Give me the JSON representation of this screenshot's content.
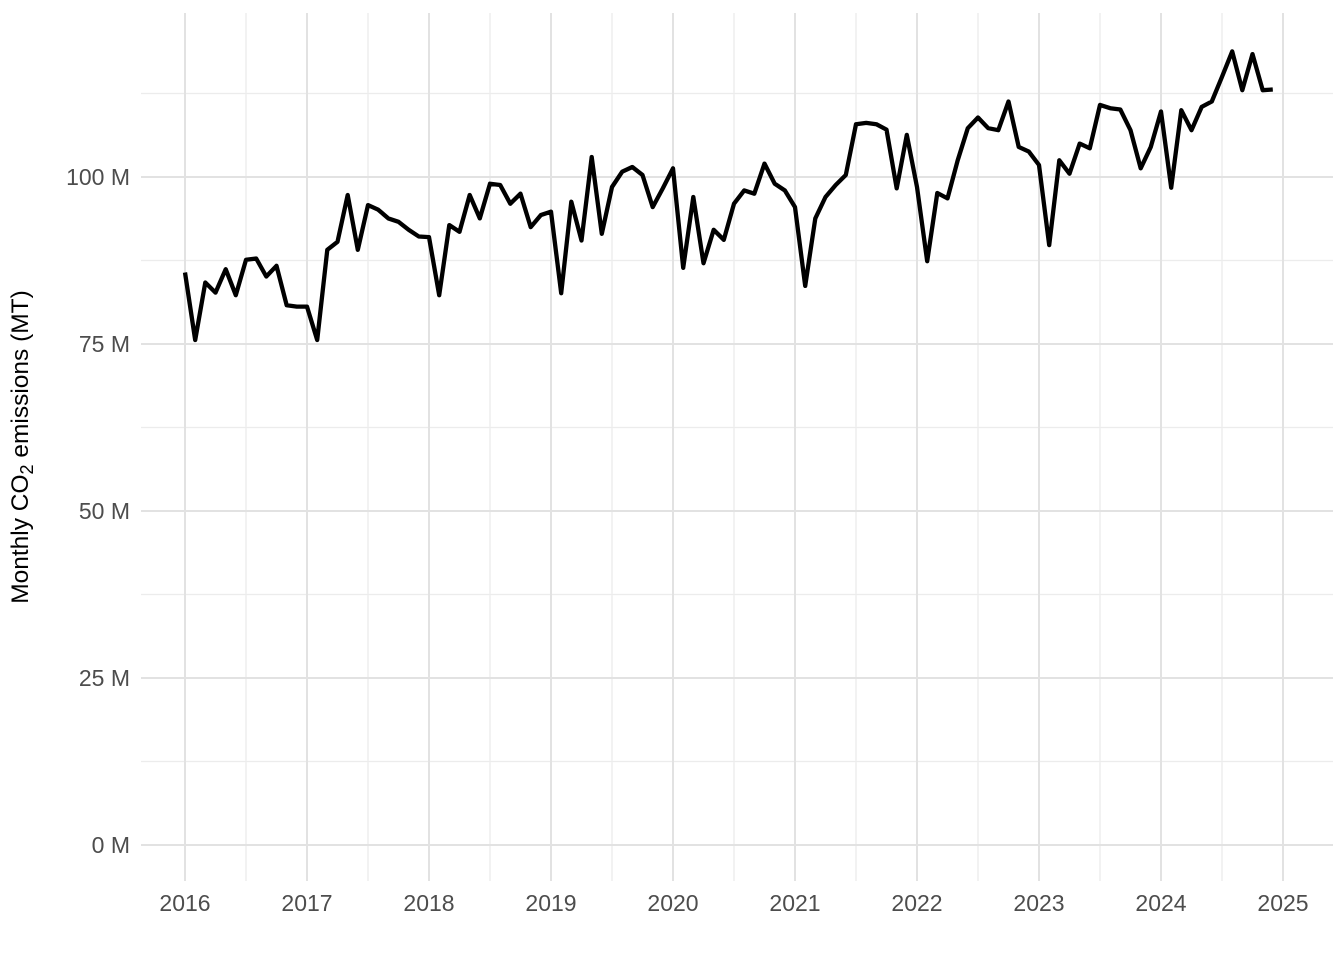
{
  "chart_data": {
    "type": "line",
    "title": "",
    "xlabel": "",
    "ylabel": "Monthly CO2 emissions (MT)",
    "ylabel_parts": {
      "prefix": "Monthly CO",
      "subscript": "2",
      "suffix": " emissions (MT)"
    },
    "legend": "none",
    "grid": "on",
    "x_range_years": [
      2015.64,
      2025.41
    ],
    "y_range": [
      -5,
      124.5
    ],
    "x_axis": {
      "tick_labels": [
        "2016",
        "2017",
        "2018",
        "2019",
        "2020",
        "2021",
        "2022",
        "2023",
        "2024",
        "2025"
      ],
      "tick_values": [
        2016,
        2017,
        2018,
        2019,
        2020,
        2021,
        2022,
        2023,
        2024,
        2025
      ],
      "minor_tick_values": [
        2016.5,
        2017.5,
        2018.5,
        2019.5,
        2020.5,
        2021.5,
        2022.5,
        2023.5,
        2024.5
      ]
    },
    "y_axis": {
      "tick_labels": [
        "0 M",
        "25 M",
        "50 M",
        "75 M",
        "100 M"
      ],
      "tick_values": [
        0,
        25,
        50,
        75,
        100
      ],
      "minor_tick_values": [
        12.5,
        37.5,
        62.5,
        87.5,
        112.5
      ]
    },
    "series": [
      {
        "name": "monthly-co2-emissions",
        "unit": "million tonnes",
        "x": [
          "2016-01",
          "2016-02",
          "2016-03",
          "2016-04",
          "2016-05",
          "2016-06",
          "2016-07",
          "2016-08",
          "2016-09",
          "2016-10",
          "2016-11",
          "2016-12",
          "2017-01",
          "2017-02",
          "2017-03",
          "2017-04",
          "2017-05",
          "2017-06",
          "2017-07",
          "2017-08",
          "2017-09",
          "2017-10",
          "2017-11",
          "2017-12",
          "2018-01",
          "2018-02",
          "2018-03",
          "2018-04",
          "2018-05",
          "2018-06",
          "2018-07",
          "2018-08",
          "2018-09",
          "2018-10",
          "2018-11",
          "2018-12",
          "2019-01",
          "2019-02",
          "2019-03",
          "2019-04",
          "2019-05",
          "2019-06",
          "2019-07",
          "2019-08",
          "2019-09",
          "2019-10",
          "2019-11",
          "2019-12",
          "2020-01",
          "2020-02",
          "2020-03",
          "2020-04",
          "2020-05",
          "2020-06",
          "2020-07",
          "2020-08",
          "2020-09",
          "2020-10",
          "2020-11",
          "2020-12",
          "2021-01",
          "2021-02",
          "2021-03",
          "2021-04",
          "2021-05",
          "2021-06",
          "2021-07",
          "2021-08",
          "2021-09",
          "2021-10",
          "2021-11",
          "2021-12",
          "2022-01",
          "2022-02",
          "2022-03",
          "2022-04",
          "2022-05",
          "2022-06",
          "2022-07",
          "2022-08",
          "2022-09",
          "2022-10",
          "2022-11",
          "2022-12",
          "2023-01",
          "2023-02",
          "2023-03",
          "2023-04",
          "2023-05",
          "2023-06",
          "2023-07",
          "2023-08",
          "2023-09",
          "2023-10",
          "2023-11",
          "2023-12",
          "2024-01",
          "2024-02",
          "2024-03",
          "2024-04",
          "2024-05",
          "2024-06",
          "2024-07",
          "2024-08",
          "2024-09",
          "2024-10",
          "2024-11",
          "2024-12"
        ],
        "values": [
          85.7,
          75.6,
          84.2,
          82.7,
          86.2,
          82.3,
          87.6,
          87.8,
          85.1,
          86.7,
          80.8,
          80.6,
          80.6,
          75.6,
          89.1,
          90.3,
          97.3,
          89.1,
          95.8,
          95.1,
          93.8,
          93.3,
          92.1,
          91.1,
          91.0,
          82.3,
          92.8,
          91.8,
          97.3,
          93.8,
          99.0,
          98.8,
          96.0,
          97.5,
          92.5,
          94.3,
          94.8,
          82.6,
          96.3,
          90.5,
          103.0,
          91.5,
          98.5,
          100.8,
          101.5,
          100.3,
          95.5,
          98.3,
          101.3,
          86.4,
          97.0,
          87.1,
          92.1,
          90.6,
          96.0,
          98.0,
          97.5,
          102.0,
          99.0,
          98.0,
          95.5,
          83.7,
          93.8,
          97.0,
          98.8,
          100.3,
          107.9,
          108.1,
          107.9,
          107.1,
          98.3,
          106.3,
          98.5,
          87.4,
          97.6,
          96.8,
          102.5,
          107.3,
          108.9,
          107.3,
          107.0,
          111.3,
          104.5,
          103.8,
          101.8,
          89.8,
          102.5,
          100.5,
          105.0,
          104.3,
          110.8,
          110.3,
          110.1,
          107.0,
          101.3,
          104.5,
          109.8,
          98.4,
          110.0,
          107.0,
          110.5,
          111.3,
          115.0,
          118.8,
          113.0,
          118.4,
          113.0,
          113.1
        ]
      }
    ],
    "styles": {
      "line_color": "#000000",
      "line_width": 4.3,
      "grid_major_color": "#E2E2E2",
      "grid_minor_color": "#ECECEC",
      "tick_label_color": "#4D4D4D",
      "axis_title_color": "#000000",
      "background_color": "#FFFFFF"
    }
  }
}
